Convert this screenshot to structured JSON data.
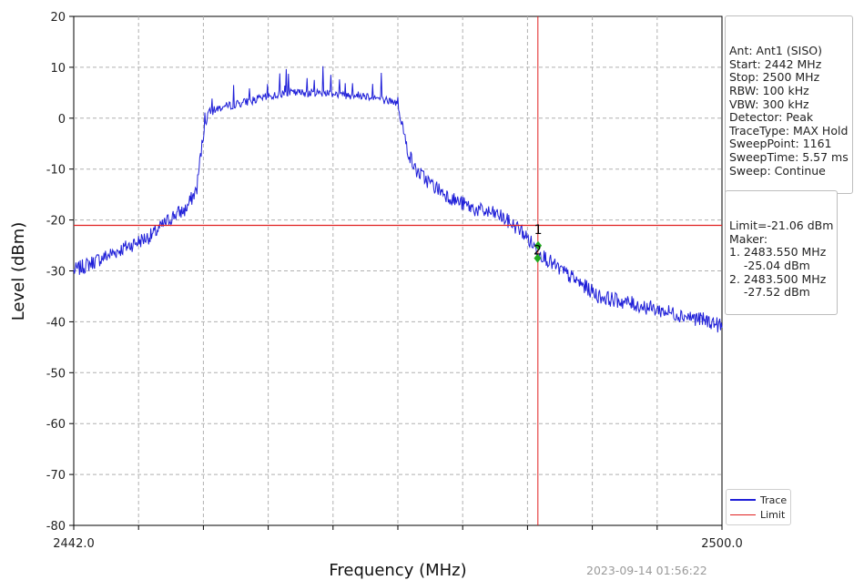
{
  "chart_data": {
    "type": "line",
    "xlabel": "Frequency (MHz)",
    "ylabel": "Level (dBm)",
    "xlim": [
      2442.0,
      2500.0
    ],
    "ylim": [
      -80,
      20
    ],
    "x_tick_labels": [
      "2442.0",
      "2500.0"
    ],
    "y_ticks": [
      20,
      10,
      0,
      -10,
      -20,
      -30,
      -40,
      -50,
      -60,
      -70,
      -80
    ],
    "grid": true,
    "series": [
      {
        "name": "Trace",
        "color": "#1f1fd8",
        "x": [
          2442.0,
          2444.0,
          2446.0,
          2448.0,
          2449.0,
          2450.0,
          2451.0,
          2452.0,
          2453.0,
          2453.2,
          2453.5,
          2454.0,
          2455.0,
          2456.0,
          2457.0,
          2458.0,
          2459.0,
          2460.0,
          2461.0,
          2462.0,
          2463.0,
          2464.0,
          2465.0,
          2466.0,
          2467.0,
          2468.0,
          2469.0,
          2470.0,
          2471.0,
          2471.3,
          2471.7,
          2472.5,
          2474.0,
          2476.0,
          2478.0,
          2480.0,
          2482.0,
          2483.5,
          2485.0,
          2487.0,
          2489.0,
          2491.0,
          2493.0,
          2495.0,
          2497.0,
          2499.0,
          2500.0
        ],
        "y": [
          -30,
          -28,
          -26,
          -24,
          -23,
          -21,
          -19,
          -18,
          -14,
          -10,
          -5,
          1,
          2,
          2.5,
          3,
          3.5,
          4,
          4.5,
          5,
          5,
          5,
          5,
          5,
          4.5,
          4.5,
          4.5,
          4,
          3.5,
          3,
          0,
          -5,
          -10,
          -13,
          -16,
          -18,
          -19,
          -22,
          -26,
          -29,
          -32,
          -35,
          -36,
          -37,
          -38,
          -39,
          -40,
          -41
        ]
      }
    ],
    "limit": {
      "name": "Limit",
      "value": -21.06,
      "color": "#e02020"
    },
    "marker_line_x": 2483.53,
    "markers": [
      {
        "label": "1",
        "x": 2483.55,
        "y": -25.04,
        "color": "#22aa22"
      },
      {
        "label": "2",
        "x": 2483.5,
        "y": -27.52,
        "color": "#22aa22"
      }
    ],
    "legend_placement": "bottom-right",
    "settings": [
      "Ant: Ant1 (SISO)",
      "Start: 2442 MHz",
      "Stop: 2500 MHz",
      "RBW: 100 kHz",
      "VBW: 300 kHz",
      "Detector: Peak",
      "TraceType: MAX Hold",
      "SweepPoint: 1161",
      "SweepTime: 5.57 ms",
      "Sweep: Continue"
    ],
    "limit_info": [
      "Limit=-21.06 dBm",
      "Maker:",
      "1. 2483.550 MHz",
      "    -25.04 dBm",
      "2. 2483.500 MHz",
      "    -27.52 dBm"
    ],
    "legend": [
      "Trace",
      "Limit"
    ],
    "timestamp": "2023-09-14 01:56:22"
  }
}
